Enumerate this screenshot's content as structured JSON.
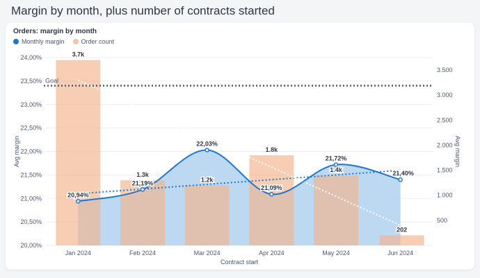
{
  "page": {
    "title": "Margin by month, plus number of contracts started"
  },
  "card": {
    "title": "Orders: margin by month"
  },
  "legend": {
    "margin_label": "Monthly margin",
    "count_label": "Order count",
    "margin_color": "#1f77d0",
    "count_color": "#f5c6a0"
  },
  "chart_data": {
    "type": "bar",
    "title": "Orders: margin by month",
    "xlabel": "Contract start",
    "ylabel_left": "Avg margin",
    "ylabel_right": "Avg margin",
    "categories": [
      "Jan 2024",
      "Feb 2024",
      "Mar 2024",
      "Apr 2024",
      "May 2024",
      "Jun 2024"
    ],
    "left_axis": {
      "ylim": [
        20.0,
        24.0
      ],
      "ticks": [
        "20,00%",
        "20,50%",
        "21,00%",
        "21,50%",
        "22,00%",
        "22,50%",
        "23,00%",
        "23,50%",
        "24,00%"
      ]
    },
    "right_axis": {
      "ylim": [
        0,
        3750
      ],
      "ticks": [
        "500",
        "1.000",
        "1.500",
        "2.000",
        "2.500",
        "3.000",
        "3.500"
      ]
    },
    "series": [
      {
        "name": "Monthly margin",
        "type": "area-line",
        "axis": "left",
        "color": "#1f77d0",
        "values": [
          20.94,
          21.19,
          22.03,
          21.09,
          21.72,
          21.4
        ],
        "labels": [
          "20,94%",
          "21,19%",
          "22,03%",
          "21,09%",
          "21,72%",
          "21,40%"
        ]
      },
      {
        "name": "Order count",
        "type": "bar",
        "axis": "right",
        "color": "#f5c6a0",
        "values": [
          3700,
          1300,
          1200,
          1800,
          1400,
          202
        ],
        "labels": [
          "3.7k",
          "1.3k",
          "1.2k",
          "1.8k",
          "1.4k",
          "202"
        ]
      }
    ],
    "goal": {
      "label": "Goal",
      "value": 23.4
    },
    "trend_margin": {
      "start": 21.1,
      "end": 21.6
    },
    "trend_count": {
      "start": 3300,
      "end": 400
    },
    "grid": true,
    "legend_position": "top-left"
  }
}
